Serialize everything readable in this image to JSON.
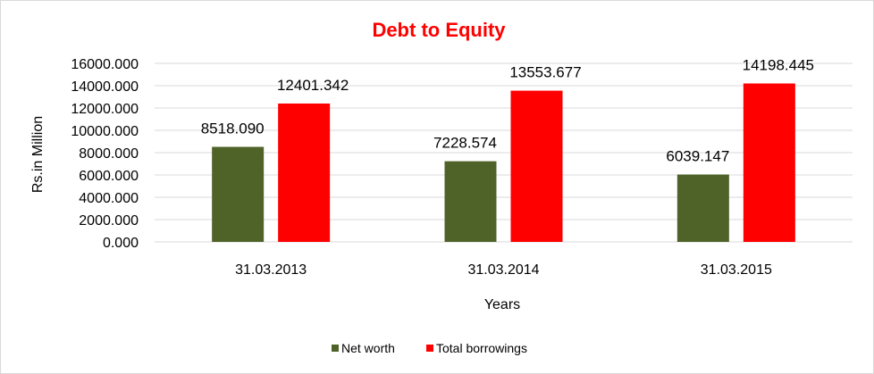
{
  "chart_data": {
    "type": "bar",
    "title": "Debt to Equity",
    "title_color": "#ff0000",
    "xlabel": "Years",
    "ylabel": "Rs.in Million",
    "categories": [
      "31.03.2013",
      "31.03.2014",
      "31.03.2015"
    ],
    "series": [
      {
        "name": "Net worth",
        "color": "#4f6228",
        "values": [
          8518.09,
          7228.574,
          6039.147
        ],
        "labels": [
          "8518.090",
          "7228.574",
          "6039.147"
        ]
      },
      {
        "name": "Total borrowings",
        "color": "#ff0000",
        "values": [
          12401.342,
          13553.677,
          14198.445
        ],
        "labels": [
          "12401.342",
          "13553.677",
          "14198.445"
        ]
      }
    ],
    "ylim": [
      0,
      16000
    ],
    "yticks": [
      0,
      2000,
      4000,
      6000,
      8000,
      10000,
      12000,
      14000,
      16000
    ],
    "ytick_labels": [
      "0.000",
      "2000.000",
      "4000.000",
      "6000.000",
      "8000.000",
      "10000.000",
      "12000.000",
      "14000.000",
      "16000.000"
    ],
    "grid": true,
    "legend_position": "bottom"
  }
}
